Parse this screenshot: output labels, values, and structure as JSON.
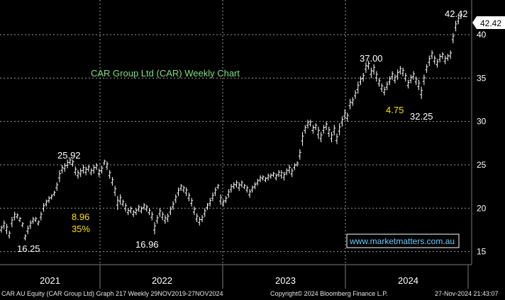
{
  "chart_data": {
    "type": "candlestick",
    "title": "CAR Group Ltd (CAR) Weekly Chart",
    "ylim": [
      13.5,
      44
    ],
    "y_ticks": [
      15,
      20,
      25,
      30,
      35,
      40
    ],
    "x_year_labels": [
      "2021",
      "2022",
      "2023",
      "2024"
    ],
    "last_price": "42.42",
    "price_color": "#ffffff",
    "title_color": "#7fe07f",
    "highlight_color": "#ffe100",
    "annotations": [
      {
        "text": "25.92",
        "color": "white"
      },
      {
        "text": "16.25",
        "color": "white"
      },
      {
        "text": "8.96",
        "color": "yellow"
      },
      {
        "text": "35%",
        "color": "yellow"
      },
      {
        "text": "16.96",
        "color": "white"
      },
      {
        "text": "37.00",
        "color": "white"
      },
      {
        "text": "4.75",
        "color": "yellow"
      },
      {
        "text": "32.25",
        "color": "white"
      },
      {
        "text": "42.42",
        "color": "white"
      }
    ],
    "watermark": "www.marketmatters.com.au",
    "series": [
      {
        "points": [
          [
            17.2,
            18.0
          ],
          [
            17.6,
            18.6
          ],
          [
            17.0,
            18.2
          ],
          [
            16.5,
            17.4
          ],
          [
            17.8,
            19.0
          ],
          [
            18.6,
            19.6
          ],
          [
            18.8,
            19.4
          ],
          [
            18.4,
            19.0
          ],
          [
            17.8,
            18.4
          ],
          [
            16.3,
            17.0
          ],
          [
            17.0,
            18.0
          ],
          [
            17.6,
            18.6
          ],
          [
            18.2,
            19.0
          ],
          [
            18.4,
            19.0
          ],
          [
            18.0,
            18.6
          ],
          [
            18.6,
            19.6
          ],
          [
            19.6,
            20.6
          ],
          [
            20.2,
            21.0
          ],
          [
            20.6,
            21.4
          ],
          [
            21.0,
            21.6
          ],
          [
            21.4,
            22.0
          ],
          [
            22.0,
            23.0
          ],
          [
            23.0,
            24.4
          ],
          [
            24.0,
            25.0
          ],
          [
            24.2,
            25.2
          ],
          [
            24.6,
            25.6
          ],
          [
            25.0,
            25.8
          ],
          [
            24.8,
            25.6
          ],
          [
            23.8,
            24.8
          ],
          [
            23.4,
            24.4
          ],
          [
            23.6,
            24.6
          ],
          [
            24.0,
            25.0
          ],
          [
            23.8,
            24.8
          ],
          [
            24.2,
            25.0
          ],
          [
            23.8,
            24.6
          ],
          [
            24.0,
            25.0
          ],
          [
            24.4,
            25.2
          ],
          [
            23.6,
            24.6
          ],
          [
            24.0,
            24.9
          ],
          [
            25.0,
            25.6
          ],
          [
            24.4,
            25.4
          ],
          [
            23.4,
            24.4
          ],
          [
            22.6,
            23.6
          ],
          [
            21.4,
            22.6
          ],
          [
            19.8,
            21.4
          ],
          [
            20.4,
            21.6
          ],
          [
            20.2,
            21.0
          ],
          [
            19.6,
            20.6
          ],
          [
            19.2,
            20.0
          ],
          [
            19.4,
            20.2
          ],
          [
            19.0,
            19.8
          ],
          [
            19.2,
            20.0
          ],
          [
            19.6,
            20.4
          ],
          [
            19.4,
            20.2
          ],
          [
            19.8,
            20.6
          ],
          [
            19.6,
            20.4
          ],
          [
            19.2,
            20.0
          ],
          [
            18.6,
            19.6
          ],
          [
            17.0,
            18.4
          ],
          [
            18.2,
            19.2
          ],
          [
            19.0,
            20.0
          ],
          [
            18.6,
            19.6
          ],
          [
            18.2,
            19.2
          ],
          [
            18.4,
            19.4
          ],
          [
            19.2,
            20.2
          ],
          [
            19.8,
            20.8
          ],
          [
            20.6,
            21.6
          ],
          [
            21.4,
            22.4
          ],
          [
            22.0,
            22.8
          ],
          [
            21.8,
            22.6
          ],
          [
            21.4,
            22.4
          ],
          [
            20.8,
            21.8
          ],
          [
            20.2,
            21.2
          ],
          [
            19.2,
            20.2
          ],
          [
            18.4,
            19.4
          ],
          [
            18.0,
            19.0
          ],
          [
            18.4,
            19.2
          ],
          [
            19.0,
            20.0
          ],
          [
            19.8,
            20.6
          ],
          [
            20.2,
            21.2
          ],
          [
            20.8,
            21.8
          ],
          [
            21.4,
            22.4
          ],
          [
            22.2,
            22.8
          ],
          [
            20.4,
            21.6
          ],
          [
            20.2,
            21.0
          ],
          [
            20.6,
            21.4
          ],
          [
            21.2,
            22.2
          ],
          [
            21.8,
            22.8
          ],
          [
            22.2,
            23.0
          ],
          [
            22.4,
            23.2
          ],
          [
            22.0,
            23.0
          ],
          [
            22.4,
            23.2
          ],
          [
            22.2,
            22.8
          ],
          [
            21.8,
            22.6
          ],
          [
            21.2,
            22.2
          ],
          [
            21.8,
            22.6
          ],
          [
            22.2,
            23.0
          ],
          [
            22.6,
            23.4
          ],
          [
            23.0,
            23.8
          ],
          [
            23.2,
            23.8
          ],
          [
            23.0,
            23.6
          ],
          [
            23.2,
            24.0
          ],
          [
            23.4,
            24.0
          ],
          [
            23.6,
            24.2
          ],
          [
            23.2,
            24.0
          ],
          [
            23.6,
            24.4
          ],
          [
            23.4,
            24.4
          ],
          [
            23.2,
            24.2
          ],
          [
            23.8,
            24.6
          ],
          [
            24.0,
            25.0
          ],
          [
            23.6,
            24.6
          ],
          [
            24.4,
            25.2
          ],
          [
            24.8,
            25.4
          ],
          [
            25.6,
            26.8
          ],
          [
            27.2,
            28.8
          ],
          [
            28.6,
            29.6
          ],
          [
            29.2,
            30.2
          ],
          [
            29.4,
            30.2
          ],
          [
            28.6,
            29.6
          ],
          [
            29.0,
            29.8
          ],
          [
            28.0,
            29.4
          ],
          [
            27.6,
            28.8
          ],
          [
            28.6,
            29.6
          ],
          [
            29.0,
            30.0
          ],
          [
            28.2,
            29.4
          ],
          [
            27.6,
            28.8
          ],
          [
            28.4,
            29.6
          ],
          [
            27.4,
            28.6
          ],
          [
            28.4,
            29.8
          ],
          [
            29.4,
            30.6
          ],
          [
            30.2,
            31.4
          ],
          [
            30.0,
            31.0
          ],
          [
            31.4,
            32.6
          ],
          [
            31.8,
            32.8
          ],
          [
            32.6,
            33.6
          ],
          [
            33.2,
            34.6
          ],
          [
            34.2,
            35.2
          ],
          [
            34.6,
            35.6
          ],
          [
            35.6,
            36.8
          ],
          [
            36.0,
            37.0
          ],
          [
            35.0,
            36.2
          ],
          [
            35.4,
            36.6
          ],
          [
            34.6,
            35.8
          ],
          [
            34.0,
            35.0
          ],
          [
            33.4,
            34.4
          ],
          [
            33.0,
            34.0
          ],
          [
            33.6,
            34.6
          ],
          [
            34.2,
            35.2
          ],
          [
            34.8,
            35.8
          ],
          [
            34.4,
            35.4
          ],
          [
            34.8,
            36.0
          ],
          [
            35.4,
            36.4
          ],
          [
            35.2,
            36.2
          ],
          [
            34.6,
            35.6
          ],
          [
            33.8,
            34.8
          ],
          [
            34.4,
            35.4
          ],
          [
            34.8,
            35.8
          ],
          [
            34.2,
            35.2
          ],
          [
            33.6,
            34.8
          ],
          [
            32.6,
            34.0
          ],
          [
            34.2,
            35.4
          ],
          [
            35.6,
            36.6
          ],
          [
            36.4,
            37.6
          ],
          [
            37.2,
            38.2
          ],
          [
            36.6,
            37.6
          ],
          [
            36.2,
            37.2
          ],
          [
            36.8,
            37.8
          ],
          [
            37.2,
            38.0
          ],
          [
            36.6,
            37.6
          ],
          [
            37.0,
            37.8
          ],
          [
            37.2,
            38.2
          ],
          [
            39.0,
            40.2
          ],
          [
            40.4,
            41.6
          ],
          [
            41.2,
            42.2
          ],
          [
            41.8,
            42.6
          ]
        ]
      }
    ]
  },
  "axis": {
    "y_labels": [
      "15",
      "20",
      "25",
      "30",
      "35",
      "40"
    ],
    "last_price_tag": "42.42"
  },
  "footer": {
    "left": "CAR AU Equity (CAR Group Ltd) Graph 217  Weekly 29NOV2019-27NOV2024",
    "center": "Copyright© 2024 Bloomberg Finance L.P.",
    "right": "27-Nov-2024 21:43:07"
  }
}
